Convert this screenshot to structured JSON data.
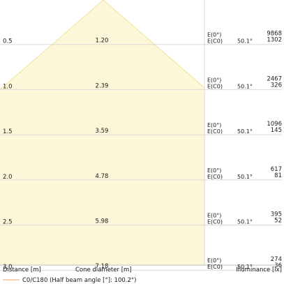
{
  "chart_data": {
    "type": "table",
    "rows": [
      {
        "distance": "0.5",
        "cone_diameter": "1.20",
        "e_label": "E(0°)",
        "ec_label": "E(C0)",
        "angle": "50.1°",
        "e0": "9868",
        "ec0": "1302"
      },
      {
        "distance": "1.0",
        "cone_diameter": "2.39",
        "e_label": "E(0°)",
        "ec_label": "E(C0)",
        "angle": "50.1°",
        "e0": "2467",
        "ec0": "326"
      },
      {
        "distance": "1.5",
        "cone_diameter": "3.59",
        "e_label": "E(0°)",
        "ec_label": "E(C0)",
        "angle": "50.1°",
        "e0": "1096",
        "ec0": "145"
      },
      {
        "distance": "2.0",
        "cone_diameter": "4.78",
        "e_label": "E(0°)",
        "ec_label": "E(C0)",
        "angle": "50.1°",
        "e0": "617",
        "ec0": "81"
      },
      {
        "distance": "2.5",
        "cone_diameter": "5.98",
        "e_label": "E(0°)",
        "ec_label": "E(C0)",
        "angle": "50.1°",
        "e0": "395",
        "ec0": "52"
      },
      {
        "distance": "3.0",
        "cone_diameter": "7.18",
        "e_label": "E(0°)",
        "ec_label": "E(C0)",
        "angle": "50.1°",
        "e0": "274",
        "ec0": "36"
      }
    ],
    "xlabel": "Distance [m]",
    "cone_label": "Cone diameter [m]",
    "ylabel": "Illuminance [lx]",
    "legend": "C0/C180 (Half beam angle [°]: 100.2°)",
    "half_beam_angle_deg": 100.2,
    "colors": {
      "cone_fill": "#fdf7d9",
      "cone_edge": "#f0e29a",
      "grid": "#d9d9d9",
      "legend_line": "#f0a070"
    }
  }
}
